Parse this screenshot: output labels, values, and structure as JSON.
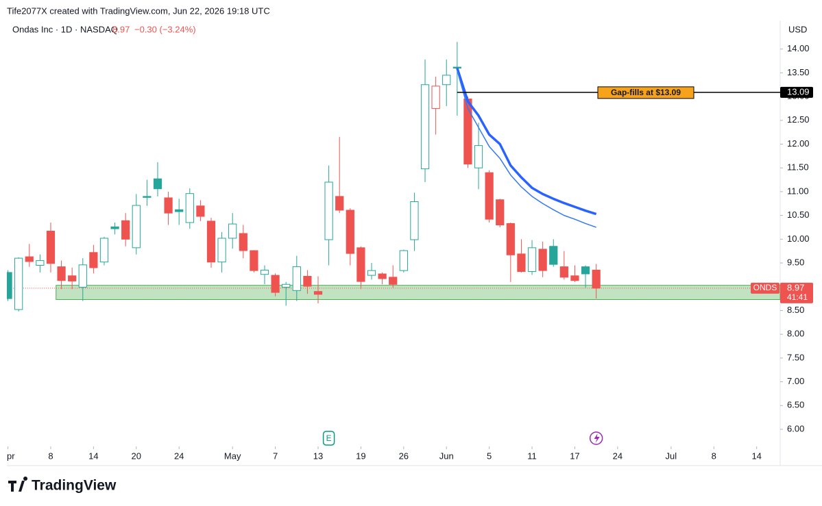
{
  "header": {
    "credit": "Tife2077X created with TradingView.com, Jun 22, 2026 19:18 UTC",
    "brand": "TradingView"
  },
  "chart_data": {
    "type": "candlestick",
    "style": "hollow",
    "legend": {
      "name": "Ondas Inc · 1D · NASDAQ",
      "price": "8.97",
      "change": "−0.30 (−3.24%)"
    },
    "currency": "USD",
    "up_color": "#26a69a",
    "down_color": "#ef5350",
    "open": [
      9.3,
      8.52,
      9.63,
      9.45,
      10.17,
      9.42,
      9.23,
      8.99,
      9.72,
      9.52,
      10.26,
      10.39,
      9.82,
      10.9,
      11.27,
      10.87,
      10.62,
      10.35,
      10.7,
      10.38,
      9.52,
      10.02,
      10.12,
      9.76,
      9.26,
      9.24,
      8.99,
      8.92,
      9.22,
      8.9,
      9.99,
      10.9,
      10.61,
      9.82,
      9.24,
      9.27,
      9.2,
      9.34,
      9.99,
      11.48,
      12.75,
      13.25,
      13.62,
      12.95,
      11.5,
      11.4,
      10.83,
      10.33,
      9.69,
      9.32,
      9.79,
      9.85,
      9.42,
      9.23,
      9.42,
      9.35
    ],
    "high": [
      9.35,
      9.62,
      9.9,
      9.68,
      10.35,
      9.55,
      9.4,
      9.6,
      9.88,
      10.05,
      10.35,
      10.55,
      10.95,
      11.25,
      11.62,
      11.0,
      10.85,
      11.07,
      10.82,
      10.45,
      10.15,
      10.55,
      10.3,
      9.77,
      9.45,
      9.28,
      9.1,
      9.65,
      9.35,
      9.22,
      11.55,
      12.15,
      10.65,
      9.85,
      9.5,
      9.3,
      9.45,
      9.78,
      10.98,
      13.78,
      13.42,
      13.78,
      14.15,
      13.0,
      12.45,
      11.45,
      10.85,
      10.35,
      10.0,
      9.98,
      9.95,
      10.0,
      9.75,
      9.45,
      9.45,
      9.48
    ],
    "low": [
      8.7,
      8.48,
      9.42,
      9.3,
      9.3,
      8.95,
      8.95,
      8.7,
      9.28,
      9.45,
      10.1,
      9.85,
      9.68,
      10.7,
      10.9,
      10.3,
      10.3,
      10.22,
      10.38,
      9.4,
      9.3,
      9.8,
      9.6,
      9.3,
      9.05,
      8.8,
      8.6,
      8.7,
      8.85,
      8.65,
      9.45,
      10.55,
      9.45,
      8.95,
      9.15,
      9.05,
      8.98,
      9.3,
      9.75,
      11.2,
      12.2,
      12.8,
      12.6,
      11.5,
      11.05,
      10.35,
      10.25,
      9.1,
      9.3,
      9.25,
      9.2,
      9.42,
      9.15,
      9.1,
      8.98,
      8.75
    ],
    "close": [
      8.75,
      9.6,
      9.53,
      9.55,
      9.49,
      9.13,
      9.12,
      9.46,
      9.4,
      10.02,
      10.22,
      10.0,
      10.71,
      10.88,
      11.06,
      10.55,
      10.58,
      10.96,
      10.48,
      9.52,
      10.02,
      10.32,
      9.76,
      9.34,
      9.35,
      8.88,
      9.05,
      9.42,
      9.01,
      8.84,
      11.2,
      10.61,
      9.7,
      9.11,
      9.34,
      9.17,
      9.05,
      9.76,
      10.79,
      13.25,
      13.22,
      13.45,
      13.6,
      11.58,
      11.97,
      10.42,
      10.3,
      9.67,
      9.32,
      9.82,
      9.34,
      9.47,
      9.2,
      9.13,
      9.27,
      8.97
    ],
    "series": [
      {
        "color": "#2962ff",
        "width": 3.5,
        "values": [
          null,
          null,
          null,
          null,
          null,
          null,
          null,
          null,
          null,
          null,
          null,
          null,
          null,
          null,
          null,
          null,
          null,
          null,
          null,
          null,
          null,
          null,
          null,
          null,
          null,
          null,
          null,
          null,
          null,
          null,
          null,
          null,
          null,
          null,
          null,
          null,
          null,
          null,
          null,
          null,
          null,
          null,
          13.6,
          12.9,
          12.6,
          12.2,
          12.0,
          11.55,
          11.3,
          11.08,
          10.95,
          10.85,
          10.76,
          10.68,
          10.6,
          10.53
        ]
      },
      {
        "color": "#3179f5",
        "width": 1.5,
        "values": [
          null,
          null,
          null,
          null,
          null,
          null,
          null,
          null,
          null,
          null,
          null,
          null,
          null,
          null,
          null,
          null,
          null,
          null,
          null,
          null,
          null,
          null,
          null,
          null,
          null,
          null,
          null,
          null,
          null,
          null,
          null,
          null,
          null,
          null,
          null,
          null,
          null,
          null,
          null,
          null,
          null,
          null,
          13.55,
          12.75,
          12.35,
          11.95,
          11.7,
          11.35,
          11.1,
          10.9,
          10.75,
          10.62,
          10.5,
          10.42,
          10.33,
          10.25
        ]
      }
    ],
    "gap_line": {
      "value": 13.09,
      "start": 42,
      "label": "Gap-fills at $13.09"
    },
    "zone": {
      "low": 8.73,
      "high": 9.03,
      "start": 5
    },
    "price_line": {
      "value": 8.97,
      "symbol": "ONDS",
      "countdown": "41:41"
    },
    "events": [
      {
        "label": "E",
        "at": 30
      }
    ],
    "xlim": [
      -0.1,
      72.2
    ],
    "ylim": [
      5.64,
      14.6
    ],
    "xticks": [
      {
        "value": 0,
        "label": "pr"
      },
      {
        "value": 4,
        "label": "8"
      },
      {
        "value": 8,
        "label": "14"
      },
      {
        "value": 12,
        "label": "20"
      },
      {
        "value": 16,
        "label": "24"
      },
      {
        "value": 21,
        "label": "May"
      },
      {
        "value": 25,
        "label": "7"
      },
      {
        "value": 29,
        "label": "13"
      },
      {
        "value": 33,
        "label": "19"
      },
      {
        "value": 37,
        "label": "26"
      },
      {
        "value": 41,
        "label": "Jun"
      },
      {
        "value": 45,
        "label": "5"
      },
      {
        "value": 49,
        "label": "11"
      },
      {
        "value": 53,
        "label": "17"
      },
      {
        "value": 57,
        "label": "24"
      },
      {
        "value": 62,
        "label": "Jul"
      },
      {
        "value": 66,
        "label": "8"
      },
      {
        "value": 70,
        "label": "14"
      }
    ],
    "yticks": [
      {
        "value": 6,
        "label": "6.00"
      },
      {
        "value": 6.5,
        "label": "6.50"
      },
      {
        "value": 7,
        "label": "7.00"
      },
      {
        "value": 7.5,
        "label": "7.50"
      },
      {
        "value": 8,
        "label": "8.00"
      },
      {
        "value": 8.5,
        "label": "8.50"
      },
      {
        "value": 9,
        "label": "9.00"
      },
      {
        "value": 9.5,
        "label": "9.50"
      },
      {
        "value": 10,
        "label": "10.00"
      },
      {
        "value": 10.5,
        "label": "10.50"
      },
      {
        "value": 11,
        "label": "11.00"
      },
      {
        "value": 11.5,
        "label": "11.50"
      },
      {
        "value": 12,
        "label": "12.00"
      },
      {
        "value": 12.5,
        "label": "12.50"
      },
      {
        "value": 13,
        "label": "13.00"
      },
      {
        "value": 13.5,
        "label": "13.50"
      },
      {
        "value": 14,
        "label": "14.00"
      }
    ]
  }
}
